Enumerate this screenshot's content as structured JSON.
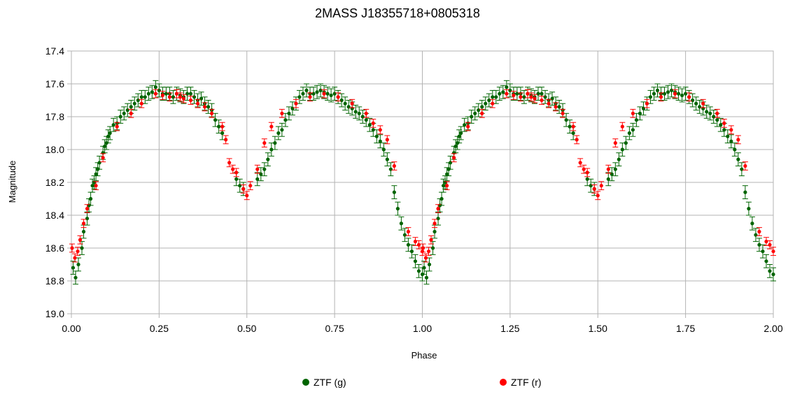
{
  "chart_data": {
    "type": "scatter",
    "title": "2MASS J18355718+0805318",
    "xlabel": "Phase",
    "ylabel": "Magnitude",
    "xlim": [
      0.0,
      2.0
    ],
    "ylim": [
      17.4,
      19.0
    ],
    "y_inverted": true,
    "grid": true,
    "legend_position": "bottom",
    "x_ticks": [
      "0.00",
      "0.25",
      "0.50",
      "0.75",
      "1.00",
      "1.25",
      "1.50",
      "1.75",
      "2.00"
    ],
    "y_ticks": [
      "17.4",
      "17.6",
      "17.8",
      "18.0",
      "18.2",
      "18.4",
      "18.6",
      "18.8",
      "19.0"
    ],
    "series": [
      {
        "name": "ZTF (g)",
        "color": "#006400",
        "error_bar": 0.04,
        "x": [
          0.005,
          0.012,
          0.02,
          0.03,
          0.035,
          0.045,
          0.05,
          0.055,
          0.06,
          0.065,
          0.07,
          0.075,
          0.08,
          0.09,
          0.095,
          0.1,
          0.105,
          0.11,
          0.12,
          0.13,
          0.14,
          0.15,
          0.16,
          0.17,
          0.18,
          0.19,
          0.2,
          0.21,
          0.22,
          0.23,
          0.24,
          0.25,
          0.26,
          0.27,
          0.28,
          0.29,
          0.3,
          0.31,
          0.32,
          0.33,
          0.34,
          0.35,
          0.36,
          0.37,
          0.38,
          0.39,
          0.4,
          0.41,
          0.42,
          0.43,
          0.47,
          0.48,
          0.49,
          0.53,
          0.54,
          0.55,
          0.56,
          0.57,
          0.58,
          0.59,
          0.6,
          0.61,
          0.62,
          0.63,
          0.64,
          0.65,
          0.66,
          0.67,
          0.68,
          0.69,
          0.7,
          0.71,
          0.72,
          0.73,
          0.74,
          0.75,
          0.76,
          0.77,
          0.78,
          0.79,
          0.8,
          0.81,
          0.82,
          0.83,
          0.84,
          0.85,
          0.86,
          0.87,
          0.88,
          0.89,
          0.9,
          0.91,
          0.92,
          0.93,
          0.94,
          0.95,
          0.96,
          0.97,
          0.98,
          0.99,
          1.0
        ],
        "y": [
          18.72,
          18.78,
          18.7,
          18.6,
          18.5,
          18.42,
          18.34,
          18.3,
          18.22,
          18.2,
          18.15,
          18.12,
          18.08,
          18.02,
          17.98,
          17.96,
          17.92,
          17.9,
          17.85,
          17.84,
          17.8,
          17.78,
          17.76,
          17.74,
          17.72,
          17.7,
          17.68,
          17.68,
          17.66,
          17.65,
          17.62,
          17.64,
          17.66,
          17.66,
          17.66,
          17.68,
          17.66,
          17.67,
          17.68,
          17.66,
          17.66,
          17.68,
          17.7,
          17.69,
          17.72,
          17.74,
          17.76,
          17.82,
          17.86,
          17.9,
          18.18,
          18.22,
          18.24,
          18.18,
          18.15,
          18.12,
          18.06,
          18.0,
          17.96,
          17.9,
          17.88,
          17.82,
          17.78,
          17.75,
          17.72,
          17.68,
          17.66,
          17.64,
          17.66,
          17.66,
          17.65,
          17.64,
          17.65,
          17.66,
          17.67,
          17.66,
          17.68,
          17.7,
          17.72,
          17.74,
          17.75,
          17.77,
          17.78,
          17.8,
          17.82,
          17.85,
          17.88,
          17.92,
          17.95,
          18.0,
          18.06,
          18.12,
          18.26,
          18.36,
          18.45,
          18.52,
          18.58,
          18.62,
          18.68,
          18.74,
          18.76
        ]
      },
      {
        "name": "ZTF (r)",
        "color": "#ff0000",
        "error_bar": 0.025,
        "x": [
          0.002,
          0.01,
          0.018,
          0.025,
          0.035,
          0.045,
          0.07,
          0.09,
          0.13,
          0.17,
          0.2,
          0.24,
          0.26,
          0.28,
          0.3,
          0.31,
          0.32,
          0.34,
          0.36,
          0.38,
          0.4,
          0.43,
          0.44,
          0.45,
          0.46,
          0.47,
          0.49,
          0.5,
          0.51,
          0.53,
          0.55,
          0.57,
          0.6,
          0.64,
          0.68,
          0.72,
          0.76,
          0.8,
          0.84,
          0.86,
          0.88,
          0.9,
          0.92,
          0.96,
          0.98,
          0.99,
          1.0
        ],
        "y": [
          18.6,
          18.66,
          18.62,
          18.55,
          18.45,
          18.36,
          18.22,
          18.05,
          17.86,
          17.78,
          17.72,
          17.66,
          17.67,
          17.68,
          17.66,
          17.68,
          17.69,
          17.7,
          17.72,
          17.74,
          17.78,
          17.86,
          17.94,
          18.08,
          18.12,
          18.14,
          18.24,
          18.28,
          18.22,
          18.12,
          17.96,
          17.86,
          17.78,
          17.72,
          17.68,
          17.66,
          17.68,
          17.72,
          17.78,
          17.84,
          17.88,
          17.94,
          18.1,
          18.5,
          18.56,
          18.58,
          18.62
        ]
      }
    ]
  }
}
